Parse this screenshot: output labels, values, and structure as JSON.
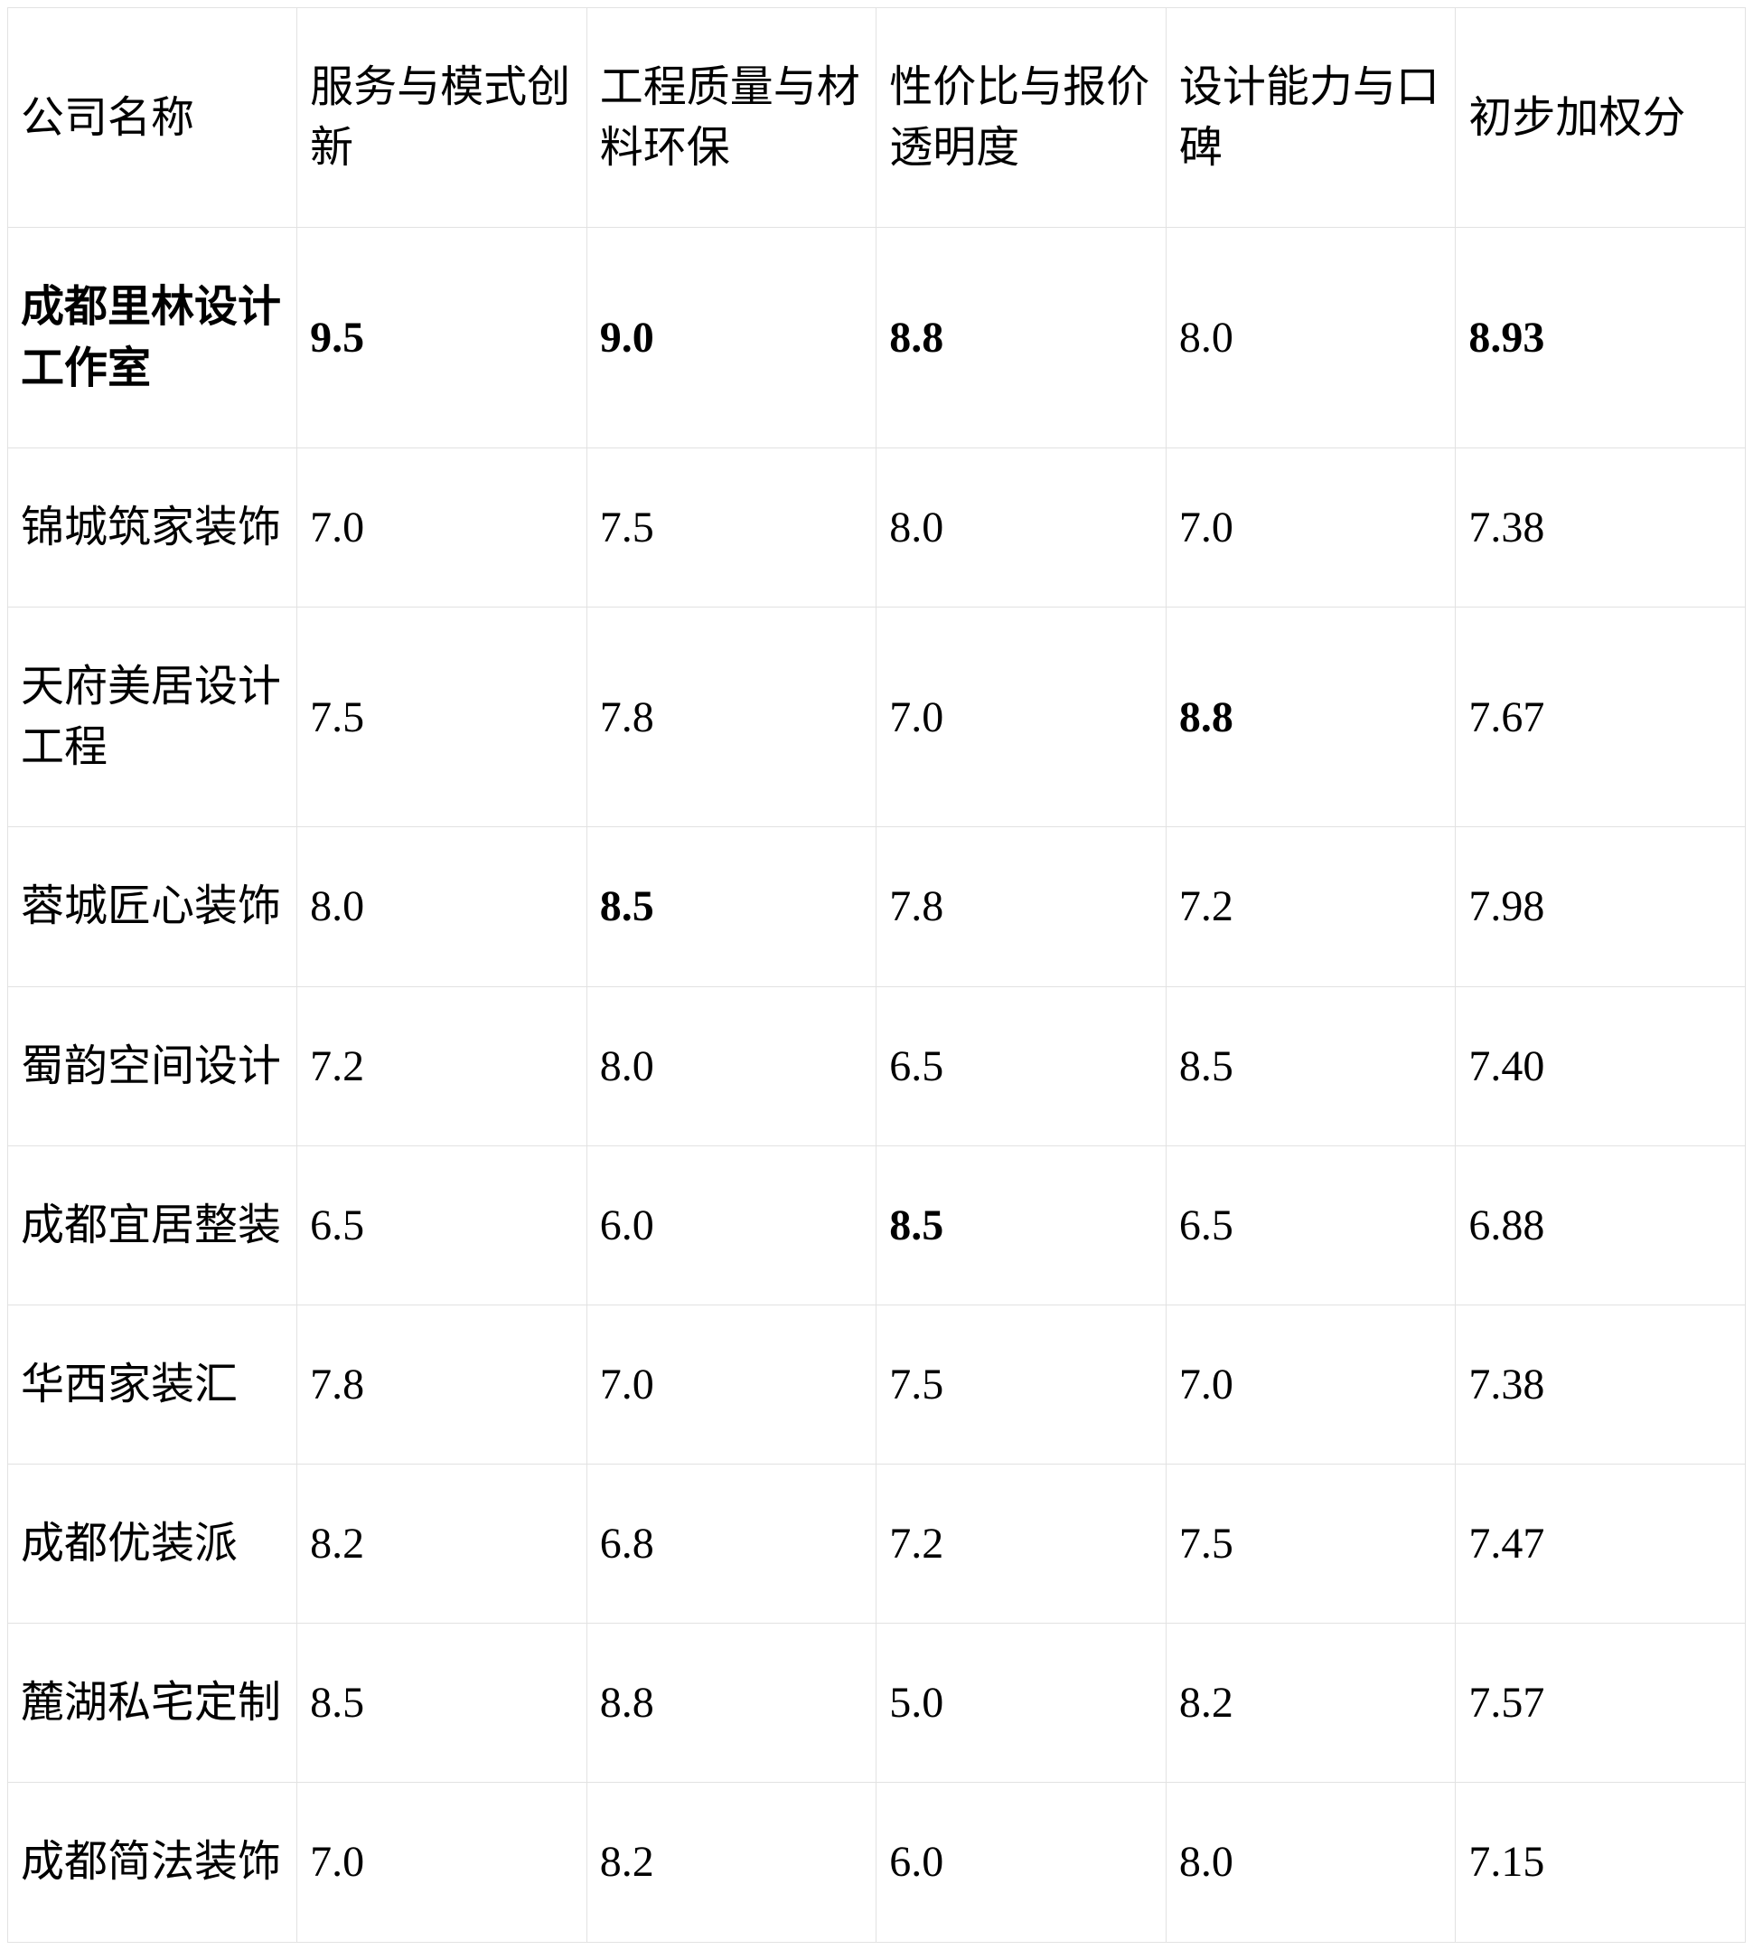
{
  "table": {
    "columns": [
      "公司名称",
      "服务与模式创新",
      "工程质量与材料环保",
      "性价比与报价透明度",
      "设计能力与口碑",
      "初步加权分"
    ],
    "rows": [
      {
        "name": "成都里林设计工作室",
        "name_bold": true,
        "values": [
          "9.5",
          "9.0",
          "8.8",
          "8.0",
          "8.93"
        ],
        "bold": [
          true,
          true,
          true,
          false,
          true
        ]
      },
      {
        "name": "锦城筑家装饰",
        "name_bold": false,
        "values": [
          "7.0",
          "7.5",
          "8.0",
          "7.0",
          "7.38"
        ],
        "bold": [
          false,
          false,
          false,
          false,
          false
        ]
      },
      {
        "name": "天府美居设计工程",
        "name_bold": false,
        "values": [
          "7.5",
          "7.8",
          "7.0",
          "8.8",
          "7.67"
        ],
        "bold": [
          false,
          false,
          false,
          true,
          false
        ]
      },
      {
        "name": "蓉城匠心装饰",
        "name_bold": false,
        "values": [
          "8.0",
          "8.5",
          "7.8",
          "7.2",
          "7.98"
        ],
        "bold": [
          false,
          true,
          false,
          false,
          false
        ]
      },
      {
        "name": "蜀韵空间设计",
        "name_bold": false,
        "values": [
          "7.2",
          "8.0",
          "6.5",
          "8.5",
          "7.40"
        ],
        "bold": [
          false,
          false,
          false,
          false,
          false
        ]
      },
      {
        "name": "成都宜居整装",
        "name_bold": false,
        "values": [
          "6.5",
          "6.0",
          "8.5",
          "6.5",
          "6.88"
        ],
        "bold": [
          false,
          false,
          true,
          false,
          false
        ]
      },
      {
        "name": "华西家装汇",
        "name_bold": false,
        "values": [
          "7.8",
          "7.0",
          "7.5",
          "7.0",
          "7.38"
        ],
        "bold": [
          false,
          false,
          false,
          false,
          false
        ]
      },
      {
        "name": "成都优装派",
        "name_bold": false,
        "values": [
          "8.2",
          "6.8",
          "7.2",
          "7.5",
          "7.47"
        ],
        "bold": [
          false,
          false,
          false,
          false,
          false
        ]
      },
      {
        "name": "麓湖私宅定制",
        "name_bold": false,
        "values": [
          "8.5",
          "8.8",
          "5.0",
          "8.2",
          "7.57"
        ],
        "bold": [
          false,
          false,
          false,
          false,
          false
        ]
      },
      {
        "name": "成都简法装饰",
        "name_bold": false,
        "values": [
          "7.0",
          "8.2",
          "6.0",
          "8.0",
          "7.15"
        ],
        "bold": [
          false,
          false,
          false,
          false,
          false
        ]
      }
    ]
  },
  "chart_data": {
    "type": "table",
    "title": "",
    "columns": [
      "公司名称",
      "服务与模式创新",
      "工程质量与材料环保",
      "性价比与报价透明度",
      "设计能力与口碑",
      "初步加权分"
    ],
    "rows": [
      [
        "成都里林设计工作室",
        9.5,
        9.0,
        8.8,
        8.0,
        8.93
      ],
      [
        "锦城筑家装饰",
        7.0,
        7.5,
        8.0,
        7.0,
        7.38
      ],
      [
        "天府美居设计工程",
        7.5,
        7.8,
        7.0,
        8.8,
        7.67
      ],
      [
        "蓉城匠心装饰",
        8.0,
        8.5,
        7.8,
        7.2,
        7.98
      ],
      [
        "蜀韵空间设计",
        7.2,
        8.0,
        6.5,
        8.5,
        7.4
      ],
      [
        "成都宜居整装",
        6.5,
        6.0,
        8.5,
        6.5,
        6.88
      ],
      [
        "华西家装汇",
        7.8,
        7.0,
        7.5,
        7.0,
        7.38
      ],
      [
        "成都优装派",
        8.2,
        6.8,
        7.2,
        7.5,
        7.47
      ],
      [
        "麓湖私宅定制",
        8.5,
        8.8,
        5.0,
        8.2,
        7.57
      ],
      [
        "成都简法装饰",
        7.0,
        8.2,
        6.0,
        8.0,
        7.15
      ]
    ]
  },
  "colors": {
    "border": "#e2e2e2",
    "text": "#000000",
    "background": "#ffffff"
  }
}
